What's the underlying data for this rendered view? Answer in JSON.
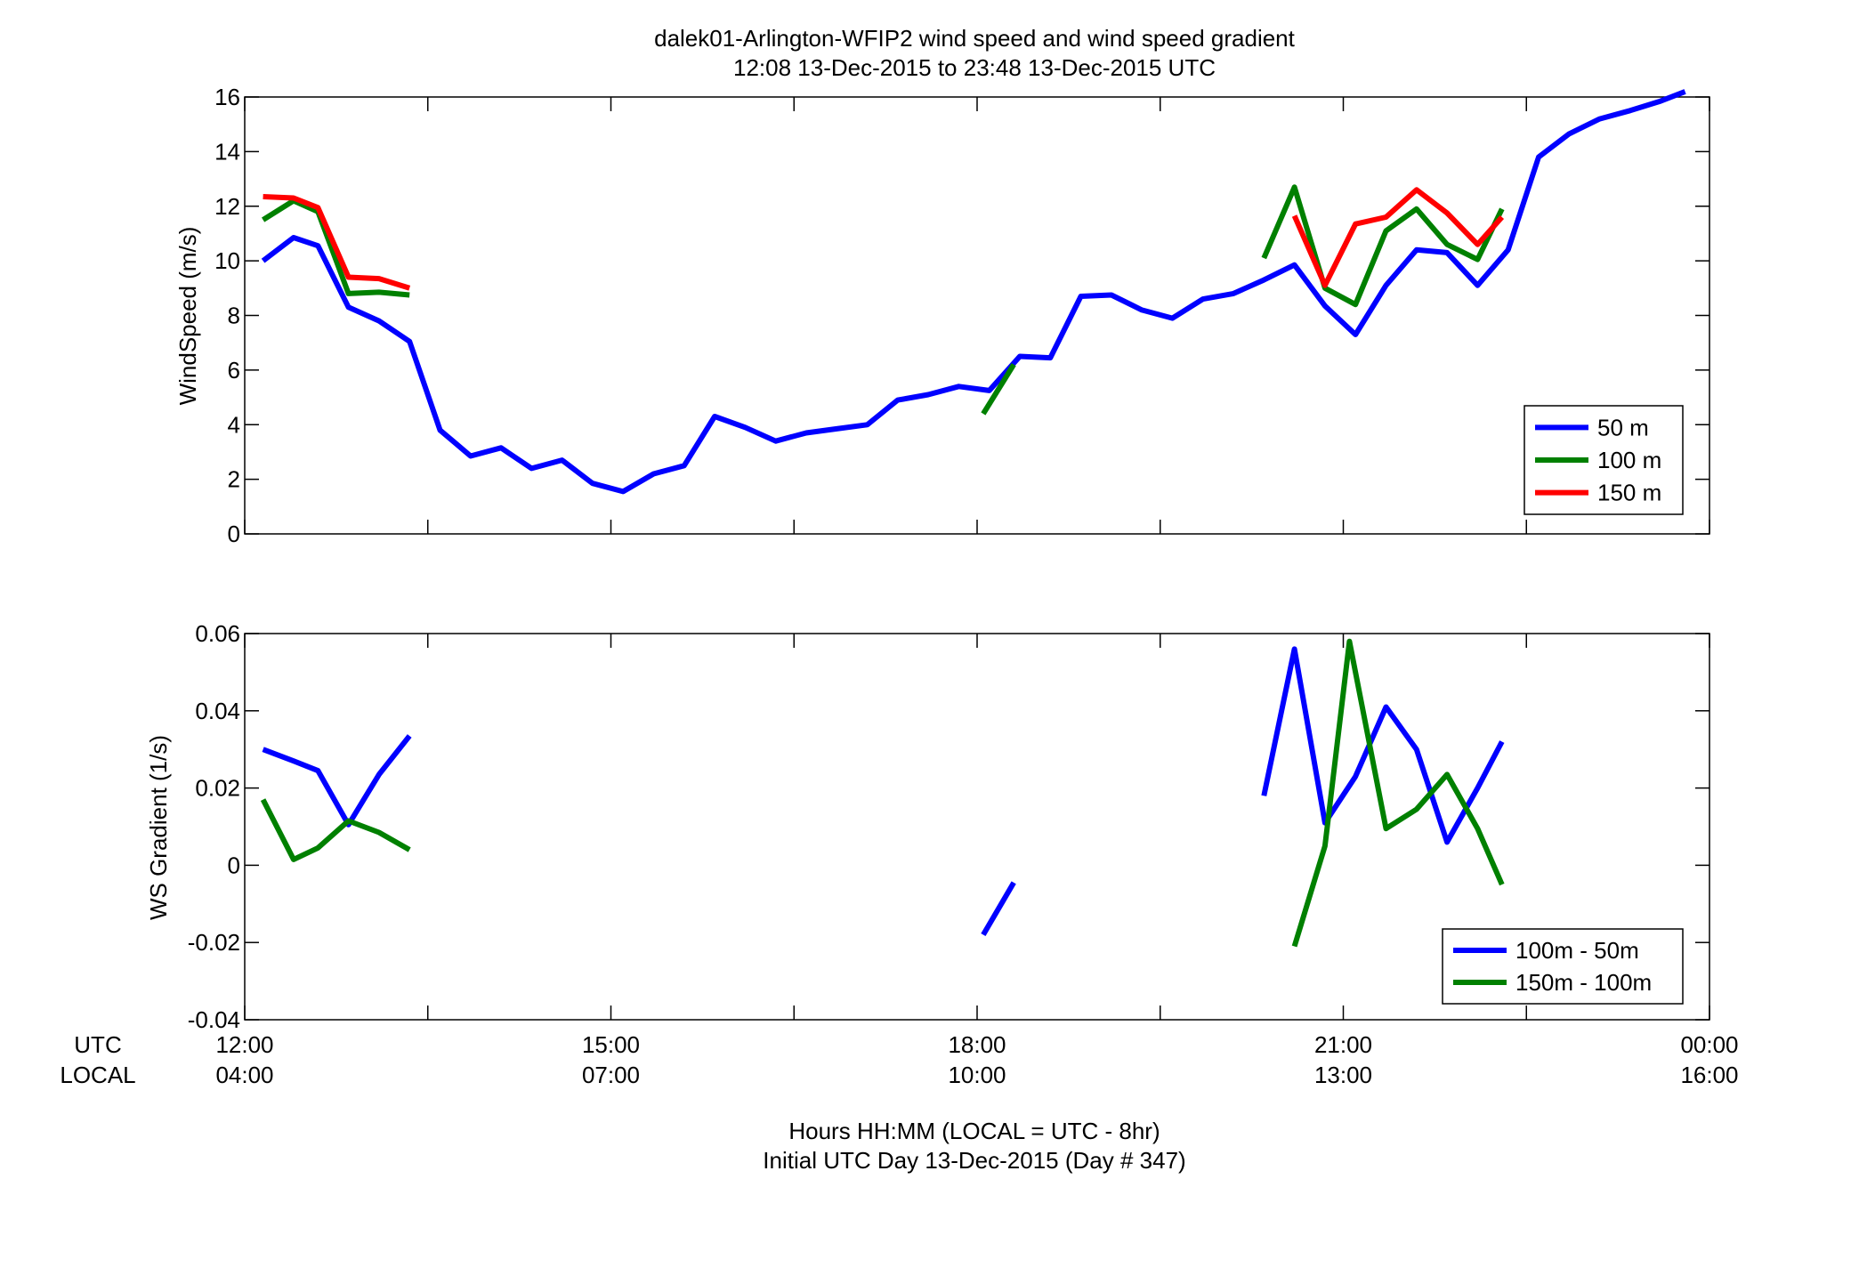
{
  "figure": {
    "title_line1": "dalek01-Arlington-WFIP2  wind speed and wind speed gradient",
    "title_line2": "12:08 13-Dec-2015 to 23:48 13-Dec-2015  UTC",
    "xlabel_line1": "Hours HH:MM  (LOCAL = UTC - 8hr)",
    "xlabel_line2": "Initial UTC Day 13-Dec-2015 (Day # 347)",
    "row_label_utc": "UTC",
    "row_label_local": "LOCAL",
    "x_ticks_utc": [
      "12:00",
      "15:00",
      "18:00",
      "21:00",
      "00:00"
    ],
    "x_ticks_local": [
      "04:00",
      "07:00",
      "10:00",
      "13:00",
      "16:00"
    ]
  },
  "chart_data": [
    {
      "type": "line",
      "ylabel": "WindSpeed (m/s)",
      "xlim": [
        12.0,
        24.0
      ],
      "ylim": [
        0,
        16
      ],
      "yticks": [
        0,
        2,
        4,
        6,
        8,
        10,
        12,
        14,
        16
      ],
      "grid": false,
      "legend_position": "bottom-right",
      "series": [
        {
          "name": "50 m",
          "color": "#0000ff",
          "segments": [
            [
              [
                12.15,
                10.0
              ],
              [
                12.4,
                10.85
              ],
              [
                12.6,
                10.55
              ],
              [
                12.85,
                8.3
              ],
              [
                13.1,
                7.8
              ],
              [
                13.35,
                7.05
              ],
              [
                13.6,
                3.8
              ],
              [
                13.85,
                2.85
              ],
              [
                14.1,
                3.15
              ],
              [
                14.35,
                2.4
              ],
              [
                14.6,
                2.7
              ],
              [
                14.85,
                1.85
              ],
              [
                15.1,
                1.55
              ],
              [
                15.35,
                2.2
              ],
              [
                15.6,
                2.5
              ],
              [
                15.85,
                4.3
              ],
              [
                16.1,
                3.9
              ],
              [
                16.35,
                3.4
              ],
              [
                16.6,
                3.7
              ],
              [
                16.85,
                3.85
              ],
              [
                17.1,
                4.0
              ],
              [
                17.35,
                4.9
              ],
              [
                17.6,
                5.1
              ],
              [
                17.85,
                5.4
              ],
              [
                18.1,
                5.25
              ],
              [
                18.35,
                6.5
              ],
              [
                18.6,
                6.45
              ],
              [
                18.85,
                8.7
              ],
              [
                19.1,
                8.75
              ],
              [
                19.35,
                8.2
              ],
              [
                19.6,
                7.9
              ],
              [
                19.85,
                8.6
              ],
              [
                20.1,
                8.8
              ],
              [
                20.35,
                9.3
              ],
              [
                20.6,
                9.85
              ],
              [
                20.85,
                8.35
              ],
              [
                21.1,
                7.3
              ],
              [
                21.35,
                9.1
              ],
              [
                21.6,
                10.4
              ],
              [
                21.85,
                10.3
              ],
              [
                22.1,
                9.1
              ],
              [
                22.35,
                10.4
              ],
              [
                22.6,
                13.8
              ],
              [
                22.85,
                14.65
              ],
              [
                23.1,
                15.2
              ],
              [
                23.35,
                15.5
              ],
              [
                23.6,
                15.85
              ],
              [
                23.8,
                16.2
              ]
            ]
          ]
        },
        {
          "name": "100 m",
          "color": "#008000",
          "segments": [
            [
              [
                12.15,
                11.5
              ],
              [
                12.4,
                12.2
              ],
              [
                12.6,
                11.8
              ],
              [
                12.85,
                8.8
              ],
              [
                13.1,
                8.85
              ],
              [
                13.35,
                8.75
              ]
            ],
            [
              [
                18.05,
                4.4
              ],
              [
                18.3,
                6.2
              ]
            ],
            [
              [
                20.35,
                10.1
              ],
              [
                20.6,
                12.7
              ],
              [
                20.85,
                9.0
              ],
              [
                21.1,
                8.4
              ],
              [
                21.35,
                11.1
              ],
              [
                21.6,
                11.9
              ],
              [
                21.85,
                10.6
              ],
              [
                22.1,
                10.05
              ],
              [
                22.3,
                11.9
              ]
            ]
          ]
        },
        {
          "name": "150 m",
          "color": "#ff0000",
          "segments": [
            [
              [
                12.15,
                12.35
              ],
              [
                12.4,
                12.3
              ],
              [
                12.6,
                11.95
              ],
              [
                12.85,
                9.4
              ],
              [
                13.1,
                9.35
              ],
              [
                13.35,
                9.0
              ]
            ],
            [
              [
                20.6,
                11.65
              ],
              [
                20.85,
                9.1
              ],
              [
                21.1,
                11.35
              ],
              [
                21.35,
                11.6
              ],
              [
                21.6,
                12.6
              ],
              [
                21.85,
                11.75
              ],
              [
                22.1,
                10.6
              ],
              [
                22.3,
                11.6
              ]
            ]
          ]
        }
      ]
    },
    {
      "type": "line",
      "ylabel": "WS Gradient (1/s)",
      "xlim": [
        12.0,
        24.0
      ],
      "ylim": [
        -0.04,
        0.06
      ],
      "yticks": [
        -0.04,
        -0.02,
        0,
        0.02,
        0.04,
        0.06
      ],
      "grid": false,
      "legend_position": "bottom-right",
      "series": [
        {
          "name": "100m - 50m",
          "color": "#0000ff",
          "segments": [
            [
              [
                12.15,
                0.03
              ],
              [
                12.4,
                0.027
              ],
              [
                12.6,
                0.0245
              ],
              [
                12.85,
                0.0105
              ],
              [
                13.1,
                0.0235
              ],
              [
                13.35,
                0.0335
              ]
            ],
            [
              [
                18.05,
                -0.018
              ],
              [
                18.3,
                -0.0045
              ]
            ],
            [
              [
                20.35,
                0.018
              ],
              [
                20.6,
                0.056
              ],
              [
                20.85,
                0.011
              ],
              [
                21.1,
                0.023
              ],
              [
                21.35,
                0.041
              ],
              [
                21.6,
                0.03
              ],
              [
                21.85,
                0.006
              ],
              [
                22.1,
                0.02
              ],
              [
                22.3,
                0.032
              ]
            ]
          ]
        },
        {
          "name": "150m - 100m",
          "color": "#008000",
          "segments": [
            [
              [
                12.15,
                0.017
              ],
              [
                12.4,
                0.0015
              ],
              [
                12.6,
                0.0045
              ],
              [
                12.85,
                0.0115
              ],
              [
                13.1,
                0.0085
              ],
              [
                13.35,
                0.004
              ]
            ],
            [
              [
                20.6,
                -0.021
              ],
              [
                20.85,
                0.005
              ],
              [
                21.05,
                0.058
              ],
              [
                21.35,
                0.0095
              ],
              [
                21.6,
                0.0145
              ],
              [
                21.85,
                0.0235
              ],
              [
                22.1,
                0.0095
              ],
              [
                22.3,
                -0.005
              ]
            ]
          ]
        }
      ]
    }
  ]
}
